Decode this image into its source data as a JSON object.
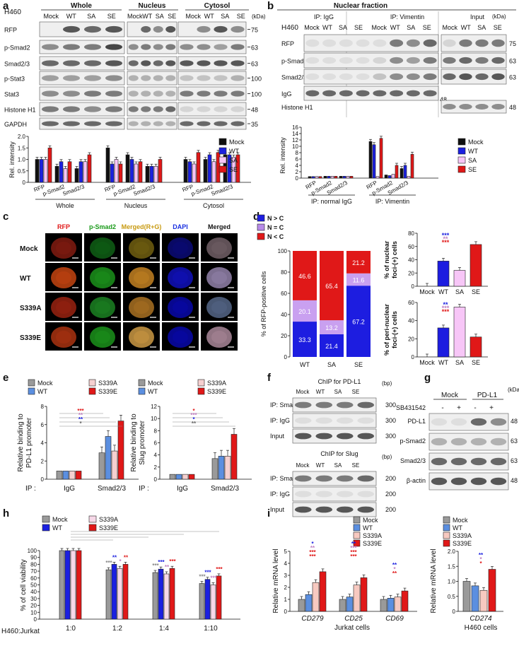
{
  "panel_letters": [
    "a",
    "b",
    "c",
    "d",
    "e",
    "f",
    "g",
    "h",
    "i"
  ],
  "colors": {
    "mock": "#101010",
    "wt": "#1b20e0",
    "sa": "#f7c6f7",
    "se": "#e01818",
    "grey": "#9a9a9a",
    "lightblue": "#5b8fe0",
    "lightred": "#f5b8b0",
    "purple": "#b78be8",
    "blueBox": "#1d1de0"
  },
  "a": {
    "cell": "H460",
    "groups": [
      "Whole",
      "Nucleus",
      "Cytosol"
    ],
    "lanes": [
      "Mock",
      "WT",
      "SA",
      "SE"
    ],
    "kda_header": "(kDa)",
    "blots": [
      {
        "label": "RFP",
        "kda": "75"
      },
      {
        "label": "p-Smad2",
        "kda": "63"
      },
      {
        "label": "Smad2/3",
        "kda": "63"
      },
      {
        "label": "p-Stat3",
        "kda": "100"
      },
      {
        "label": "Stat3",
        "kda": "100"
      },
      {
        "label": "Histone H1",
        "kda": "48"
      },
      {
        "label": "GAPDH",
        "kda": "35"
      }
    ],
    "ylabel": "Rel. intensity",
    "yticks": [
      "0",
      "0.5",
      "1.0",
      "1.5",
      "2.0"
    ],
    "proteins": [
      "RFP",
      "p-Smad2",
      "Smad2/3"
    ],
    "legend": [
      "Mock",
      "WT",
      "SA",
      "SE"
    ]
  },
  "b": {
    "title": "Nuclear fraction",
    "cell": "H460",
    "ip_groups": [
      "IP: IgG",
      "IP: Vimentin",
      "Input"
    ],
    "lanes": [
      "Mock",
      "WT",
      "SA",
      "SE"
    ],
    "kda_header": "(kDa)",
    "blots": [
      {
        "label": "RFP",
        "kda": "75"
      },
      {
        "label": "p-Smad2",
        "kda": "63"
      },
      {
        "label": "Smad2/3",
        "kda": "63"
      },
      {
        "label": "IgG",
        "kda": "48"
      },
      {
        "label": "Histone H1",
        "kda": "48"
      }
    ],
    "ylabel": "Rel. intensity",
    "yticks": [
      "0",
      "2",
      "4",
      "6",
      "8",
      "10",
      "12",
      "14",
      "16"
    ],
    "proteins": [
      "RFP",
      "p-Smad2",
      "Smad2/3"
    ],
    "group_labels": [
      "IP: normal IgG",
      "IP: Vimentin"
    ],
    "legend": [
      "Mock",
      "WT",
      "SA",
      "SE"
    ]
  },
  "c": {
    "columns": [
      "RFP",
      "p-Smad2",
      "Merged(R+G)",
      "DAPI",
      "Merged"
    ],
    "rows": [
      "Mock",
      "WT",
      "S339A",
      "S339E"
    ]
  },
  "d": {
    "legend": [
      "N > C",
      "N = C",
      "N < C"
    ],
    "ylabel": "% of RFP-positive cells",
    "yticks": [
      "0",
      "20",
      "40",
      "60",
      "80",
      "100"
    ],
    "stack": {
      "categories": [
        "WT",
        "SA",
        "SE"
      ],
      "n_gt_c": [
        "33.3",
        "21.4",
        "67.2"
      ],
      "n_eq_c": [
        "20.1",
        "13.2",
        "11.6"
      ],
      "n_lt_c": [
        "46.6",
        "65.4",
        "21.2"
      ]
    },
    "nuclear": {
      "ylabel1": "% of nuclear",
      "ylabel2": "foci-(+) cells",
      "yticks": [
        "0",
        "20",
        "40",
        "60",
        "80"
      ],
      "categories": [
        "Mock",
        "WT",
        "SA",
        "SE"
      ],
      "sig": [
        "***",
        "**",
        "***"
      ]
    },
    "perinuclear": {
      "ylabel1": "% of peri-nuclear",
      "ylabel2": "foci-(+) cells",
      "yticks": [
        "0",
        "20",
        "40",
        "60"
      ],
      "categories": [
        "Mock",
        "WT",
        "SA",
        "SE"
      ],
      "sig": [
        "**",
        "***",
        "***"
      ]
    }
  },
  "e": {
    "legend": [
      "Mock",
      "WT",
      "S339A",
      "S339E"
    ],
    "left": {
      "ylabel1": "Relative binding to",
      "ylabel2": "PD-L1 promoter",
      "yticks": [
        "0",
        "2",
        "4",
        "6",
        "8"
      ],
      "ip": "IP :",
      "groups": [
        "IgG",
        "Smad2/3"
      ],
      "sig": [
        "***",
        "**",
        "**",
        "*"
      ]
    },
    "right": {
      "ylabel1": "Relative binding to",
      "ylabel2": "Slug promoter",
      "yticks": [
        "0",
        "2",
        "4",
        "6",
        "8",
        "10",
        "12"
      ],
      "ip": "IP :",
      "groups": [
        "IgG",
        "Smad2/3"
      ],
      "sig": [
        "*",
        "***",
        "*",
        "**"
      ]
    }
  },
  "f": {
    "title1": "ChIP for PD-L1",
    "title2": "ChIP for Slug",
    "lanes": [
      "Mock",
      "WT",
      "SA",
      "SE"
    ],
    "bp": "(bp)",
    "rows1": [
      {
        "label": "IP: Smad2/3",
        "bp": "300"
      },
      {
        "label": "IP: IgG",
        "bp": "300"
      },
      {
        "label": "Input",
        "bp": "300"
      }
    ],
    "rows2": [
      {
        "label": "IP: Smad2/3",
        "bp": "200"
      },
      {
        "label": "IP: IgG",
        "bp": "200"
      },
      {
        "label": "Input",
        "bp": "200"
      }
    ]
  },
  "g": {
    "groups": [
      "Mock",
      "PD-L1"
    ],
    "treatment": "SB431542",
    "signs": [
      "-",
      "+",
      "-",
      "+"
    ],
    "kda_header": "(kDa)",
    "blots": [
      {
        "label": "PD-L1",
        "kda": "48"
      },
      {
        "label": "p-Smad2",
        "kda": "63"
      },
      {
        "label": "Smad2/3",
        "kda": "63"
      },
      {
        "label": "β-actin",
        "kda": "48"
      }
    ]
  },
  "h": {
    "legend": [
      "Mock",
      "WT",
      "S339A",
      "S339E"
    ],
    "ylabel": "% of cell viability",
    "yticks": [
      "0",
      "10",
      "20",
      "30",
      "40",
      "50",
      "60",
      "70",
      "80",
      "90",
      "100"
    ],
    "xlabel": "H460:Jurkat",
    "categories": [
      "1:0",
      "1:2",
      "1:4",
      "1:10"
    ],
    "sig": [
      [
        "***",
        "**",
        "*",
        "**"
      ],
      [
        "***",
        "***",
        "**",
        "***"
      ],
      [
        "***",
        "***",
        "***",
        "***"
      ]
    ]
  },
  "i": {
    "legend": [
      "Mock",
      "WT",
      "S339A",
      "S339E"
    ],
    "ylabel": "Relative mRNA level",
    "left": {
      "yticks": [
        "0",
        "1",
        "2",
        "3",
        "4",
        "5"
      ],
      "genes": [
        "CD279",
        "CD25",
        "CD69"
      ],
      "cells": "Jurkat cells"
    },
    "right": {
      "yticks": [
        "0",
        "0.5",
        "1.0",
        "1.5",
        "2.0"
      ],
      "genes": [
        "CD274"
      ],
      "cells": "H460 cells"
    },
    "sig_left": [
      [
        "*",
        "**",
        "***",
        "***"
      ],
      [
        "**",
        "***",
        "***",
        "***"
      ],
      [
        "**",
        "*",
        "**"
      ]
    ],
    "sig_right": [
      "**",
      "*",
      "*"
    ]
  }
}
